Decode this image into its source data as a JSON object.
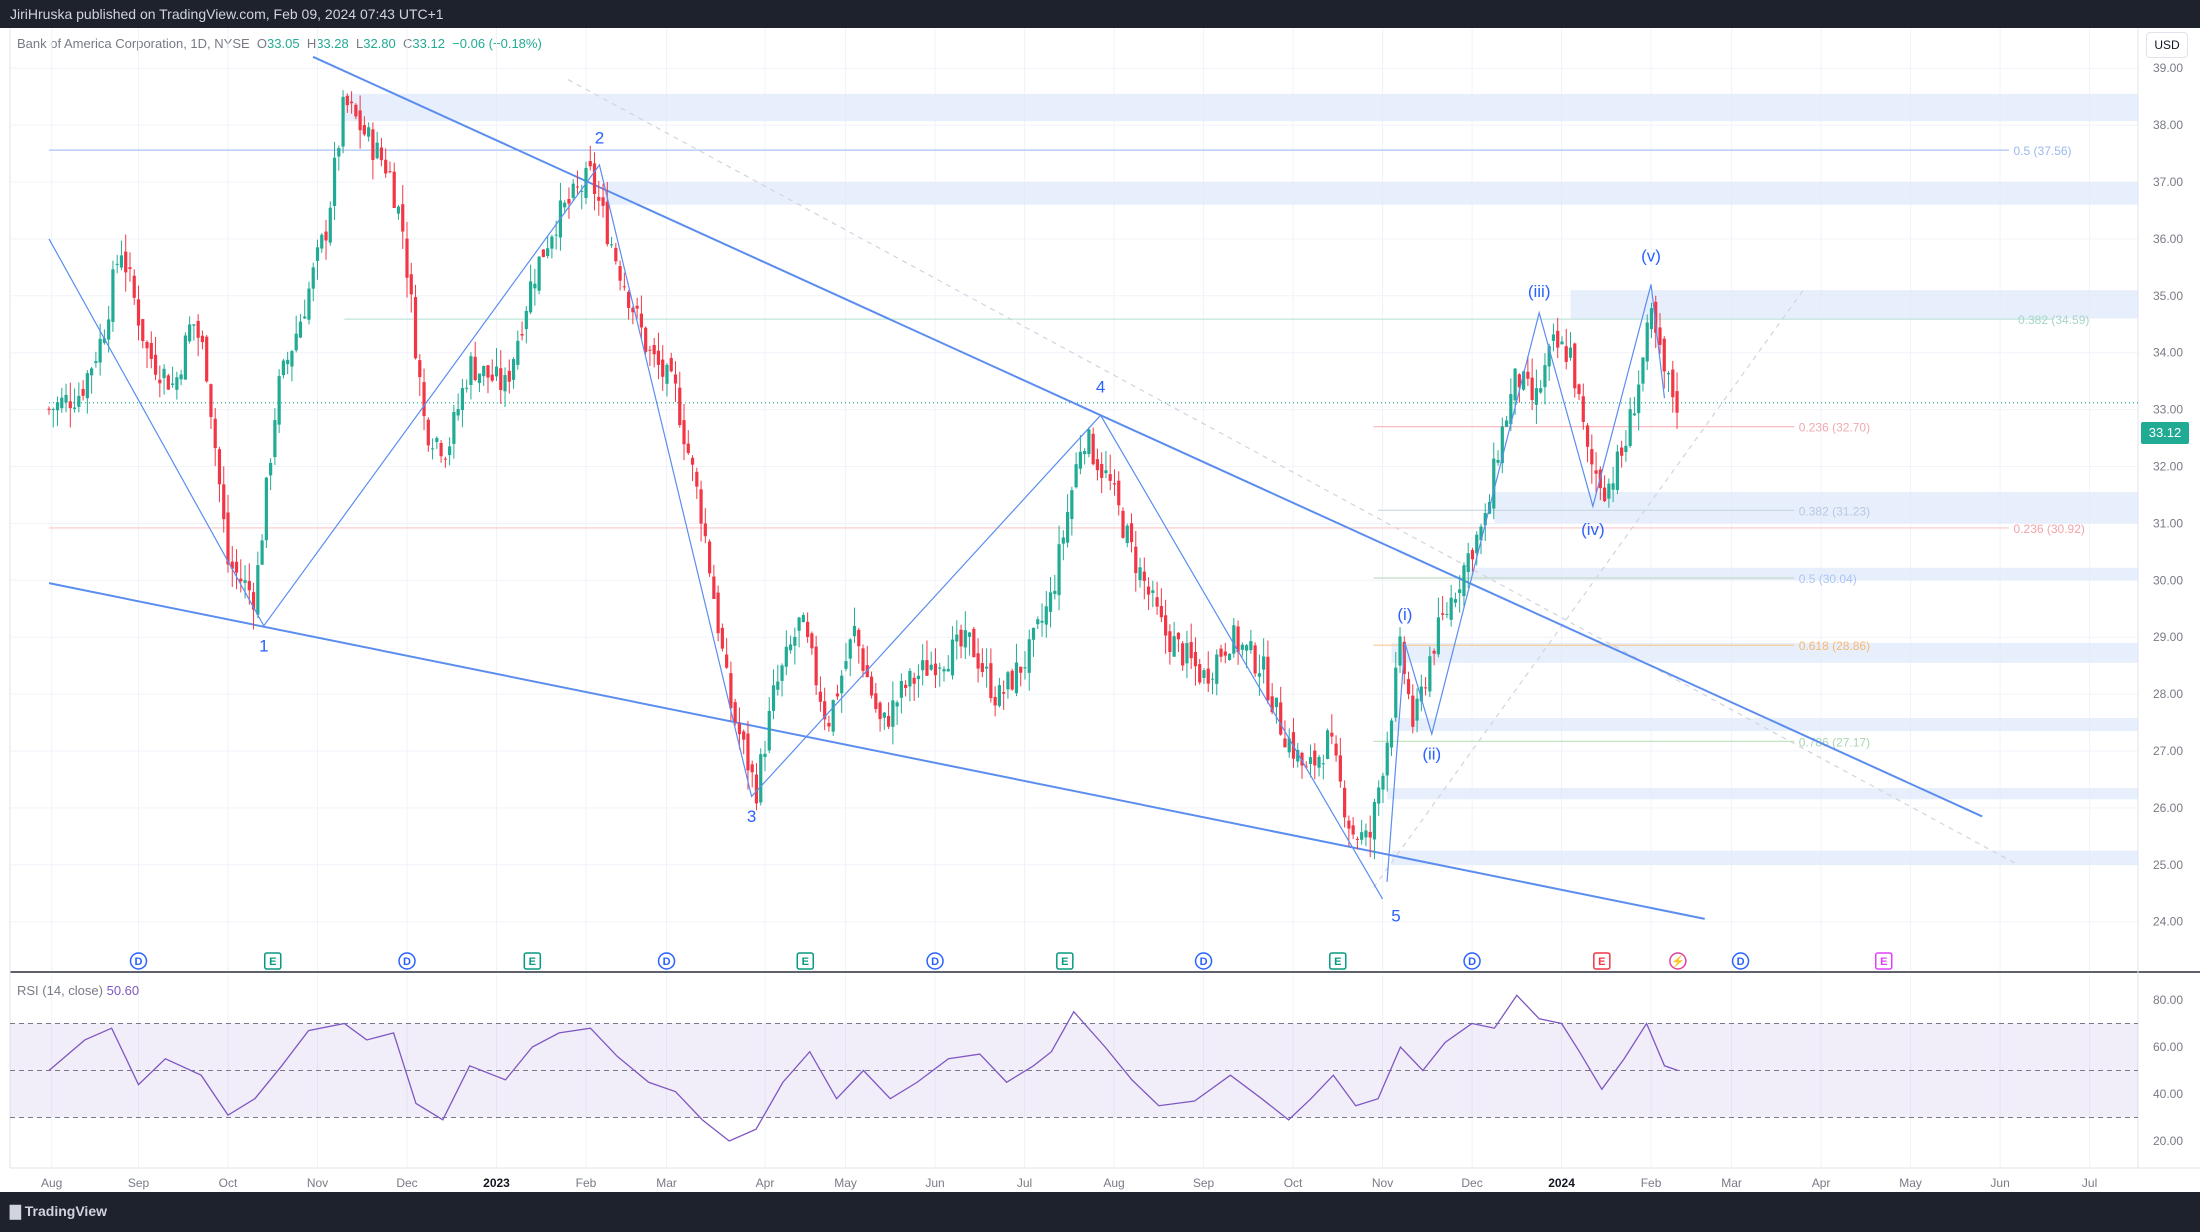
{
  "header": {
    "publisher": "JiriHruska published on TradingView.com, Feb 09, 2024 07:43 UTC+1"
  },
  "legend": {
    "symbol": "Bank of America Corporation, 1D, NYSE",
    "o_label": "O",
    "o": "33.05",
    "h_label": "H",
    "h": "33.28",
    "l_label": "L",
    "l": "32.80",
    "c_label": "C",
    "c": "33.12",
    "change": "−0.06 (−0.18%)"
  },
  "currency": "USD",
  "last_price": "33.12",
  "rsi": {
    "label": "RSI (14, close)",
    "value": "50.60"
  },
  "footer": {
    "brand": "TradingView"
  },
  "colors": {
    "up": "#22ab94",
    "down": "#f23645",
    "line": "#5b8def",
    "rsi": "#7e57c2",
    "zone": "#dbe7fb"
  },
  "chart_data": {
    "type": "candlestick",
    "price_axis": {
      "ticks": [
        39.0,
        38.0,
        37.0,
        36.0,
        35.0,
        34.0,
        33.0,
        32.0,
        31.0,
        30.0,
        29.0,
        28.0,
        27.0,
        26.0,
        25.0,
        24.0
      ],
      "labels": [
        "39.00",
        "38.00",
        "37.00",
        "36.00",
        "35.00",
        "34.00",
        "33.00",
        "32.00",
        "31.00",
        "30.00",
        "29.00",
        "28.00",
        "27.00",
        "26.00",
        "25.00",
        "24.00"
      ]
    },
    "rsi_axis": {
      "ticks": [
        80,
        60,
        40,
        20
      ],
      "labels": [
        "80.00",
        "60.00",
        "40.00",
        "20.00"
      ],
      "band": [
        30,
        70
      ],
      "mid": 50
    },
    "time_axis": [
      {
        "label": "Aug",
        "t": 0.03,
        "bold": false
      },
      {
        "label": "Sep",
        "t": 1.0,
        "bold": false
      },
      {
        "label": "Oct",
        "t": 2.0,
        "bold": false
      },
      {
        "label": "Nov",
        "t": 3.0,
        "bold": false
      },
      {
        "label": "Dec",
        "t": 4.0,
        "bold": false
      },
      {
        "label": "2023",
        "t": 5.0,
        "bold": true
      },
      {
        "label": "Feb",
        "t": 6.0,
        "bold": false
      },
      {
        "label": "Mar",
        "t": 6.9,
        "bold": false
      },
      {
        "label": "Apr",
        "t": 8.0,
        "bold": false
      },
      {
        "label": "May",
        "t": 8.9,
        "bold": false
      },
      {
        "label": "Jun",
        "t": 9.9,
        "bold": false
      },
      {
        "label": "Jul",
        "t": 10.9,
        "bold": false
      },
      {
        "label": "Aug",
        "t": 11.9,
        "bold": false
      },
      {
        "label": "Sep",
        "t": 12.9,
        "bold": false
      },
      {
        "label": "Oct",
        "t": 13.9,
        "bold": false
      },
      {
        "label": "Nov",
        "t": 14.9,
        "bold": false
      },
      {
        "label": "Dec",
        "t": 15.9,
        "bold": false
      },
      {
        "label": "2024",
        "t": 16.9,
        "bold": true
      },
      {
        "label": "Feb",
        "t": 17.9,
        "bold": false
      },
      {
        "label": "Mar",
        "t": 18.8,
        "bold": false
      },
      {
        "label": "Apr",
        "t": 19.8,
        "bold": false
      },
      {
        "label": "May",
        "t": 20.8,
        "bold": false
      },
      {
        "label": "Jun",
        "t": 21.8,
        "bold": false
      },
      {
        "label": "Jul",
        "t": 22.8,
        "bold": false
      }
    ],
    "price_path": [
      [
        0.0,
        33.0
      ],
      [
        0.35,
        33.3
      ],
      [
        0.6,
        34.3
      ],
      [
        0.8,
        35.9
      ],
      [
        1.1,
        34.0
      ],
      [
        1.4,
        33.4
      ],
      [
        1.6,
        34.6
      ],
      [
        1.75,
        33.9
      ],
      [
        2.0,
        30.3
      ],
      [
        2.3,
        29.7
      ],
      [
        2.55,
        33.3
      ],
      [
        2.85,
        34.8
      ],
      [
        3.1,
        36.2
      ],
      [
        3.3,
        38.4
      ],
      [
        3.55,
        37.8
      ],
      [
        3.8,
        37.2
      ],
      [
        3.95,
        36.2
      ],
      [
        4.2,
        32.7
      ],
      [
        4.45,
        32.3
      ],
      [
        4.7,
        33.8
      ],
      [
        5.1,
        33.4
      ],
      [
        5.4,
        35.3
      ],
      [
        5.65,
        36.3
      ],
      [
        6.05,
        37.1
      ],
      [
        6.35,
        35.6
      ],
      [
        6.7,
        34.0
      ],
      [
        7.0,
        33.3
      ],
      [
        7.3,
        31.1
      ],
      [
        7.6,
        27.9
      ],
      [
        7.9,
        26.3
      ],
      [
        8.1,
        28.0
      ],
      [
        8.4,
        29.3
      ],
      [
        8.7,
        27.5
      ],
      [
        9.0,
        29.1
      ],
      [
        9.3,
        27.4
      ],
      [
        9.55,
        28.1
      ],
      [
        9.9,
        28.6
      ],
      [
        10.3,
        28.9
      ],
      [
        10.6,
        27.9
      ],
      [
        10.95,
        28.7
      ],
      [
        11.2,
        29.7
      ],
      [
        11.55,
        32.6
      ],
      [
        11.85,
        31.7
      ],
      [
        12.1,
        30.5
      ],
      [
        12.45,
        29.1
      ],
      [
        12.9,
        28.3
      ],
      [
        13.2,
        29.0
      ],
      [
        13.55,
        28.5
      ],
      [
        13.75,
        27.5
      ],
      [
        14.05,
        26.6
      ],
      [
        14.3,
        27.2
      ],
      [
        14.55,
        25.6
      ],
      [
        14.75,
        25.4
      ],
      [
        14.95,
        27.2
      ],
      [
        15.1,
        28.8
      ],
      [
        15.25,
        27.4
      ],
      [
        15.45,
        28.8
      ],
      [
        15.65,
        29.6
      ],
      [
        15.9,
        30.6
      ],
      [
        16.05,
        31.0
      ],
      [
        16.2,
        32.4
      ],
      [
        16.4,
        33.6
      ],
      [
        16.6,
        33.1
      ],
      [
        16.8,
        34.1
      ],
      [
        17.0,
        34.0
      ],
      [
        17.2,
        32.1
      ],
      [
        17.4,
        31.6
      ],
      [
        17.6,
        32.3
      ],
      [
        17.8,
        33.8
      ],
      [
        17.9,
        34.6
      ],
      [
        18.05,
        33.6
      ],
      [
        18.2,
        33.1
      ]
    ],
    "rsi_path": [
      [
        0.0,
        50
      ],
      [
        0.4,
        63
      ],
      [
        0.7,
        68
      ],
      [
        1.0,
        44
      ],
      [
        1.3,
        55
      ],
      [
        1.7,
        48
      ],
      [
        2.0,
        31
      ],
      [
        2.3,
        38
      ],
      [
        2.6,
        52
      ],
      [
        2.9,
        67
      ],
      [
        3.3,
        70
      ],
      [
        3.55,
        63
      ],
      [
        3.85,
        66
      ],
      [
        4.1,
        36
      ],
      [
        4.4,
        29
      ],
      [
        4.7,
        52
      ],
      [
        5.1,
        46
      ],
      [
        5.4,
        60
      ],
      [
        5.7,
        66
      ],
      [
        6.05,
        68
      ],
      [
        6.35,
        56
      ],
      [
        6.7,
        45
      ],
      [
        7.0,
        41
      ],
      [
        7.3,
        29
      ],
      [
        7.6,
        20
      ],
      [
        7.9,
        25
      ],
      [
        8.2,
        45
      ],
      [
        8.5,
        58
      ],
      [
        8.8,
        38
      ],
      [
        9.1,
        50
      ],
      [
        9.4,
        38
      ],
      [
        9.7,
        45
      ],
      [
        10.05,
        55
      ],
      [
        10.4,
        57
      ],
      [
        10.7,
        45
      ],
      [
        11.0,
        52
      ],
      [
        11.2,
        58
      ],
      [
        11.45,
        75
      ],
      [
        11.8,
        60
      ],
      [
        12.1,
        46
      ],
      [
        12.4,
        35
      ],
      [
        12.8,
        37
      ],
      [
        13.2,
        48
      ],
      [
        13.55,
        38
      ],
      [
        13.85,
        29
      ],
      [
        14.1,
        38
      ],
      [
        14.35,
        48
      ],
      [
        14.6,
        35
      ],
      [
        14.85,
        38
      ],
      [
        15.1,
        60
      ],
      [
        15.35,
        50
      ],
      [
        15.6,
        62
      ],
      [
        15.9,
        70
      ],
      [
        16.15,
        68
      ],
      [
        16.4,
        82
      ],
      [
        16.65,
        72
      ],
      [
        16.9,
        70
      ],
      [
        17.1,
        58
      ],
      [
        17.35,
        42
      ],
      [
        17.6,
        55
      ],
      [
        17.85,
        70
      ],
      [
        18.05,
        52
      ],
      [
        18.2,
        50
      ]
    ],
    "zones": [
      {
        "t0": 3.3,
        "t1": 23.5,
        "p0": 38.07,
        "p1": 38.55
      },
      {
        "t0": 6.2,
        "t1": 23.5,
        "p0": 36.6,
        "p1": 37.0
      },
      {
        "t0": 17.0,
        "t1": 23.5,
        "p0": 34.6,
        "p1": 35.1
      },
      {
        "t0": 16.15,
        "t1": 23.5,
        "p0": 31.0,
        "p1": 31.55
      },
      {
        "t0": 15.85,
        "t1": 23.5,
        "p0": 30.0,
        "p1": 30.22
      },
      {
        "t0": 15.0,
        "t1": 23.5,
        "p0": 28.55,
        "p1": 28.9
      },
      {
        "t0": 15.0,
        "t1": 23.5,
        "p0": 27.35,
        "p1": 27.58
      },
      {
        "t0": 14.95,
        "t1": 23.5,
        "p0": 26.15,
        "p1": 26.35
      },
      {
        "t0": 15.0,
        "t1": 23.5,
        "p0": 25.0,
        "p1": 25.25
      }
    ],
    "h_lines": [
      {
        "price": 37.56,
        "t0": 0.0,
        "t1": 21.9,
        "color": "#a9c4f5",
        "label": "0.5 (37.56)",
        "label_t": 21.95,
        "label_color": "#9ab7ee"
      },
      {
        "price": 34.59,
        "t0": 3.3,
        "t1": 22.4,
        "color": "#bfe6dc",
        "label": "0.382 (34.59)",
        "label_t": 22.0,
        "label_color": "#a7d5c9"
      },
      {
        "price": 32.7,
        "t0": 14.8,
        "t1": 19.5,
        "color": "#f6b3b8",
        "label": "0.236 (32.70)",
        "label_t": 19.55,
        "label_color": "#f0a9ae"
      },
      {
        "price": 31.23,
        "t0": 14.85,
        "t1": 19.5,
        "color": "#c9d4e4",
        "label": "0.382 (31.23)",
        "label_t": 19.55,
        "label_color": "#b7c8e3"
      },
      {
        "price": 30.92,
        "t0": 0.0,
        "t1": 21.9,
        "color": "#f8c7ca",
        "label": "0.236 (30.92)",
        "label_t": 21.95,
        "label_color": "#f1a3a9"
      },
      {
        "price": 30.04,
        "t0": 14.8,
        "t1": 19.5,
        "color": "#c3dbc4",
        "label": "0.5 (30.04)",
        "label_t": 19.55,
        "label_color": "#a9c4f5"
      },
      {
        "price": 28.86,
        "t0": 14.8,
        "t1": 19.5,
        "color": "#f9c98b",
        "label": "0.618 (28.86)",
        "label_t": 19.55,
        "label_color": "#f5b872"
      },
      {
        "price": 27.17,
        "t0": 14.8,
        "t1": 19.5,
        "color": "#b9e2b9",
        "label": "0.786 (27.17)",
        "label_t": 19.55,
        "label_color": "#a9d6b0"
      },
      {
        "price": 33.12,
        "t0": 0.0,
        "t1": 23.5,
        "color": "#22ab94",
        "label": "",
        "label_t": 0,
        "label_color": "#22ab94",
        "dotted": true
      }
    ],
    "trend_lines": [
      {
        "t0": 2.95,
        "p0": 39.2,
        "t1": 21.6,
        "p1": 25.85
      },
      {
        "t0": 0.0,
        "p0": 29.95,
        "t1": 18.5,
        "p1": 24.05
      }
    ],
    "dashed_lines": [
      {
        "t0": 5.8,
        "p0": 38.8,
        "t1": 22.0,
        "p1": 25.0
      },
      {
        "t0": 14.8,
        "p0": 24.6,
        "t1": 19.6,
        "p1": 35.1
      }
    ],
    "wave_path": [
      [
        0.0,
        36.0
      ],
      [
        2.4,
        29.2
      ],
      [
        6.15,
        37.3
      ],
      [
        7.85,
        26.2
      ],
      [
        11.75,
        32.9
      ],
      [
        14.9,
        24.4
      ]
    ],
    "subwave_path": [
      [
        14.95,
        24.7
      ],
      [
        15.15,
        28.9
      ],
      [
        15.45,
        27.3
      ],
      [
        16.65,
        34.7
      ],
      [
        17.25,
        31.3
      ],
      [
        17.9,
        35.2
      ],
      [
        18.05,
        33.2
      ]
    ],
    "wave_labels": [
      {
        "text": "1",
        "t": 2.4,
        "p": 28.75
      },
      {
        "text": "2",
        "t": 6.15,
        "p": 37.68
      },
      {
        "text": "3",
        "t": 7.85,
        "p": 25.75
      },
      {
        "text": "4",
        "t": 11.75,
        "p": 33.3
      },
      {
        "text": "5",
        "t": 15.05,
        "p": 24.0
      },
      {
        "text": "(i)",
        "t": 15.15,
        "p": 29.3
      },
      {
        "text": "(ii)",
        "t": 15.45,
        "p": 26.85
      },
      {
        "text": "(iii)",
        "t": 16.65,
        "p": 34.98
      },
      {
        "text": "(iv)",
        "t": 17.25,
        "p": 30.8
      },
      {
        "text": "(v)",
        "t": 17.9,
        "p": 35.6
      }
    ],
    "events": [
      {
        "kind": "D",
        "t": 1.0,
        "color": "#2962ff",
        "shape": "circle"
      },
      {
        "kind": "E",
        "t": 2.5,
        "color": "#089981",
        "shape": "square"
      },
      {
        "kind": "D",
        "t": 4.0,
        "color": "#2962ff",
        "shape": "circle"
      },
      {
        "kind": "E",
        "t": 5.4,
        "color": "#089981",
        "shape": "square"
      },
      {
        "kind": "D",
        "t": 6.9,
        "color": "#2962ff",
        "shape": "circle"
      },
      {
        "kind": "E",
        "t": 8.45,
        "color": "#089981",
        "shape": "square"
      },
      {
        "kind": "D",
        "t": 9.9,
        "color": "#2962ff",
        "shape": "circle"
      },
      {
        "kind": "E",
        "t": 11.35,
        "color": "#089981",
        "shape": "square"
      },
      {
        "kind": "D",
        "t": 12.9,
        "color": "#2962ff",
        "shape": "circle"
      },
      {
        "kind": "E",
        "t": 14.4,
        "color": "#089981",
        "shape": "square"
      },
      {
        "kind": "D",
        "t": 15.9,
        "color": "#2962ff",
        "shape": "circle"
      },
      {
        "kind": "E",
        "t": 17.35,
        "color": "#f23645",
        "shape": "square"
      },
      {
        "kind": "S",
        "t": 18.2,
        "color": "#e040a0",
        "shape": "circle"
      },
      {
        "kind": "D",
        "t": 18.9,
        "color": "#2962ff",
        "shape": "circle"
      },
      {
        "kind": "E",
        "t": 20.5,
        "color": "#e040fb",
        "shape": "square"
      }
    ]
  }
}
